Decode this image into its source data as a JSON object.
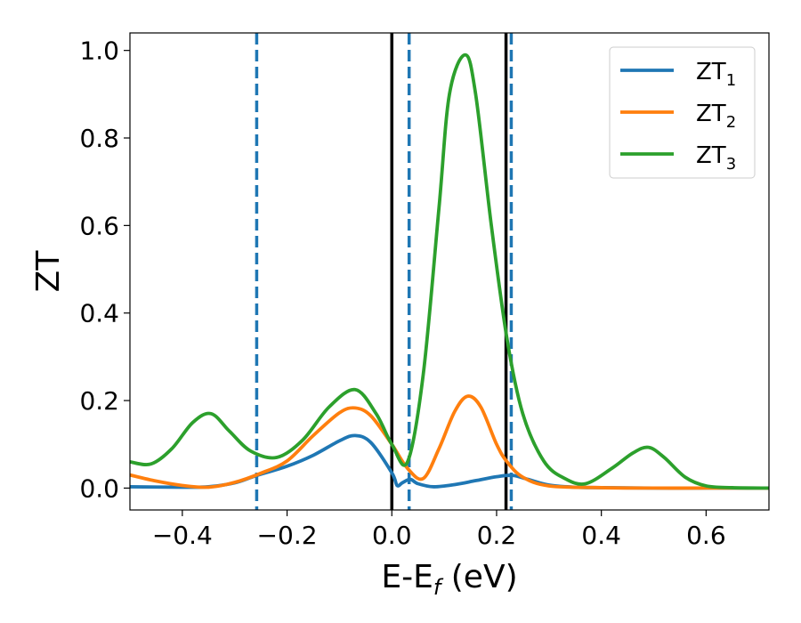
{
  "chart_data": {
    "type": "line",
    "xlabel": "E-E",
    "xlabel_sub": "f",
    "xlabel_unit": " (eV)",
    "ylabel": "ZT",
    "xlim": [
      -0.5,
      0.72
    ],
    "ylim": [
      -0.05,
      1.04
    ],
    "xticks": [
      -0.4,
      -0.2,
      0.0,
      0.2,
      0.4,
      0.6
    ],
    "xtick_labels": [
      "−0.4",
      "−0.2",
      "0.0",
      "0.2",
      "0.4",
      "0.6"
    ],
    "yticks": [
      0.0,
      0.2,
      0.4,
      0.6,
      0.8,
      1.0
    ],
    "ytick_labels": [
      "0.0",
      "0.2",
      "0.4",
      "0.6",
      "0.8",
      "1.0"
    ],
    "grid": false,
    "legend_position": "top-right",
    "series": [
      {
        "name": "ZT",
        "name_sub": "1",
        "color": "#1f77b4",
        "x": [
          -0.5,
          -0.4,
          -0.35,
          -0.3,
          -0.26,
          -0.2,
          -0.15,
          -0.1,
          -0.07,
          -0.04,
          0.0,
          0.01,
          0.02,
          0.035,
          0.05,
          0.08,
          0.12,
          0.16,
          0.2,
          0.23,
          0.26,
          0.3,
          0.35,
          0.4,
          0.5,
          0.6,
          0.72
        ],
        "y": [
          0.003,
          0.002,
          0.003,
          0.012,
          0.028,
          0.05,
          0.075,
          0.108,
          0.12,
          0.104,
          0.035,
          0.006,
          0.012,
          0.02,
          0.01,
          0.003,
          0.008,
          0.017,
          0.026,
          0.029,
          0.02,
          0.007,
          0.002,
          0.001,
          0.0,
          0.0,
          0.0
        ]
      },
      {
        "name": "ZT",
        "name_sub": "2",
        "color": "#ff7f0e",
        "x": [
          -0.5,
          -0.45,
          -0.4,
          -0.35,
          -0.3,
          -0.25,
          -0.2,
          -0.15,
          -0.1,
          -0.07,
          -0.04,
          0.0,
          0.03,
          0.06,
          0.09,
          0.12,
          0.145,
          0.17,
          0.2,
          0.22,
          0.25,
          0.3,
          0.4,
          0.5,
          0.6,
          0.72
        ],
        "y": [
          0.03,
          0.016,
          0.006,
          0.002,
          0.013,
          0.034,
          0.062,
          0.12,
          0.172,
          0.183,
          0.165,
          0.1,
          0.045,
          0.022,
          0.09,
          0.175,
          0.21,
          0.185,
          0.1,
          0.06,
          0.025,
          0.005,
          0.001,
          0.0,
          0.0,
          0.0
        ]
      },
      {
        "name": "ZT",
        "name_sub": "3",
        "color": "#2ca02c",
        "x": [
          -0.5,
          -0.46,
          -0.42,
          -0.38,
          -0.345,
          -0.31,
          -0.27,
          -0.22,
          -0.17,
          -0.12,
          -0.07,
          -0.03,
          0.0,
          0.03,
          0.06,
          0.09,
          0.11,
          0.14,
          0.16,
          0.19,
          0.22,
          0.25,
          0.29,
          0.33,
          0.37,
          0.42,
          0.46,
          0.49,
          0.52,
          0.56,
          0.6,
          0.65,
          0.72
        ],
        "y": [
          0.06,
          0.055,
          0.09,
          0.15,
          0.17,
          0.13,
          0.085,
          0.07,
          0.11,
          0.185,
          0.225,
          0.17,
          0.1,
          0.06,
          0.26,
          0.64,
          0.9,
          0.99,
          0.9,
          0.6,
          0.34,
          0.17,
          0.062,
          0.022,
          0.01,
          0.045,
          0.08,
          0.093,
          0.07,
          0.025,
          0.005,
          0.001,
          0.0
        ]
      }
    ],
    "vlines": [
      {
        "x": 0.0,
        "style": "solid",
        "color": "#000000"
      },
      {
        "x": 0.218,
        "style": "solid",
        "color": "#000000"
      },
      {
        "x": -0.258,
        "style": "dashed",
        "color": "#1f77b4"
      },
      {
        "x": 0.033,
        "style": "dashed",
        "color": "#1f77b4"
      },
      {
        "x": 0.228,
        "style": "dashed",
        "color": "#1f77b4"
      }
    ]
  }
}
